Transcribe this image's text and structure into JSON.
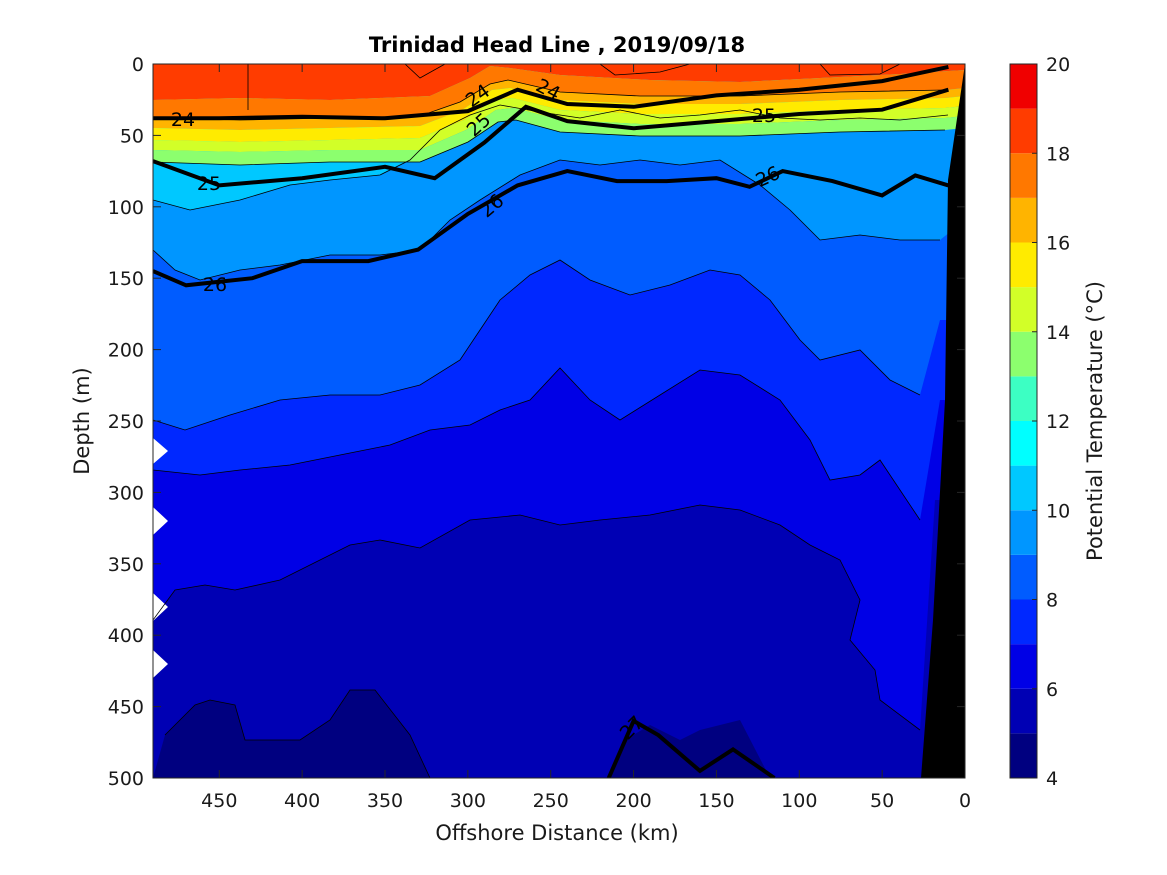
{
  "chart_data": {
    "type": "heatmap",
    "title": "Trinidad Head Line , 2019/09/18",
    "xlabel": "Offshore Distance (km)",
    "ylabel": "Depth (m)",
    "colorbar_label": "Potential Temperature (°C)",
    "xlim": [
      490,
      0
    ],
    "ylim": [
      500,
      0
    ],
    "x_reversed": true,
    "y_reversed": true,
    "x_ticks": [
      "450",
      "400",
      "350",
      "300",
      "250",
      "200",
      "150",
      "100",
      "50",
      "0"
    ],
    "y_ticks": [
      "0",
      "50",
      "100",
      "150",
      "200",
      "250",
      "300",
      "350",
      "400",
      "450",
      "500"
    ],
    "colorbar_range": [
      4,
      20
    ],
    "colorbar_ticks": [
      "4",
      "6",
      "8",
      "10",
      "12",
      "14",
      "16",
      "18",
      "20"
    ],
    "colormap": [
      "#000080",
      "#0000b4",
      "#0000e6",
      "#0028ff",
      "#005cff",
      "#0096ff",
      "#00c8ff",
      "#00ffff",
      "#3cffc3",
      "#8cff6e",
      "#d2ff28",
      "#ffeb00",
      "#ffb400",
      "#ff7800",
      "#ff3c00",
      "#f00000",
      "#b40000"
    ],
    "sigma_contour_labels": [
      "24",
      "24",
      "24",
      "25",
      "25",
      "25",
      "26",
      "26",
      "26",
      "27"
    ],
    "sigma_isopycnals": [
      {
        "level": 24,
        "x": [
          490,
          450,
          400,
          350,
          300,
          270,
          240,
          200,
          150,
          100,
          50,
          10
        ],
        "depth": [
          38,
          38,
          37,
          38,
          33,
          18,
          28,
          30,
          22,
          18,
          12,
          2
        ]
      },
      {
        "level": 25,
        "x": [
          490,
          450,
          400,
          350,
          320,
          290,
          265,
          240,
          200,
          150,
          100,
          50,
          10
        ],
        "depth": [
          68,
          85,
          80,
          72,
          80,
          55,
          30,
          40,
          45,
          40,
          35,
          32,
          18
        ]
      },
      {
        "level": 26,
        "x": [
          490,
          470,
          430,
          400,
          360,
          330,
          300,
          270,
          240,
          210,
          180,
          150,
          130,
          110,
          80,
          50,
          30,
          10
        ],
        "depth": [
          145,
          155,
          150,
          138,
          138,
          130,
          105,
          85,
          75,
          82,
          82,
          80,
          86,
          75,
          82,
          92,
          78,
          85
        ]
      },
      {
        "level": 27,
        "x": [
          215,
          200,
          185,
          160,
          140,
          115
        ],
        "depth": [
          500,
          460,
          470,
          495,
          480,
          500
        ]
      }
    ],
    "bathymetry_km_at_500m": 25,
    "bathymetry_km_at_0m": 0
  }
}
